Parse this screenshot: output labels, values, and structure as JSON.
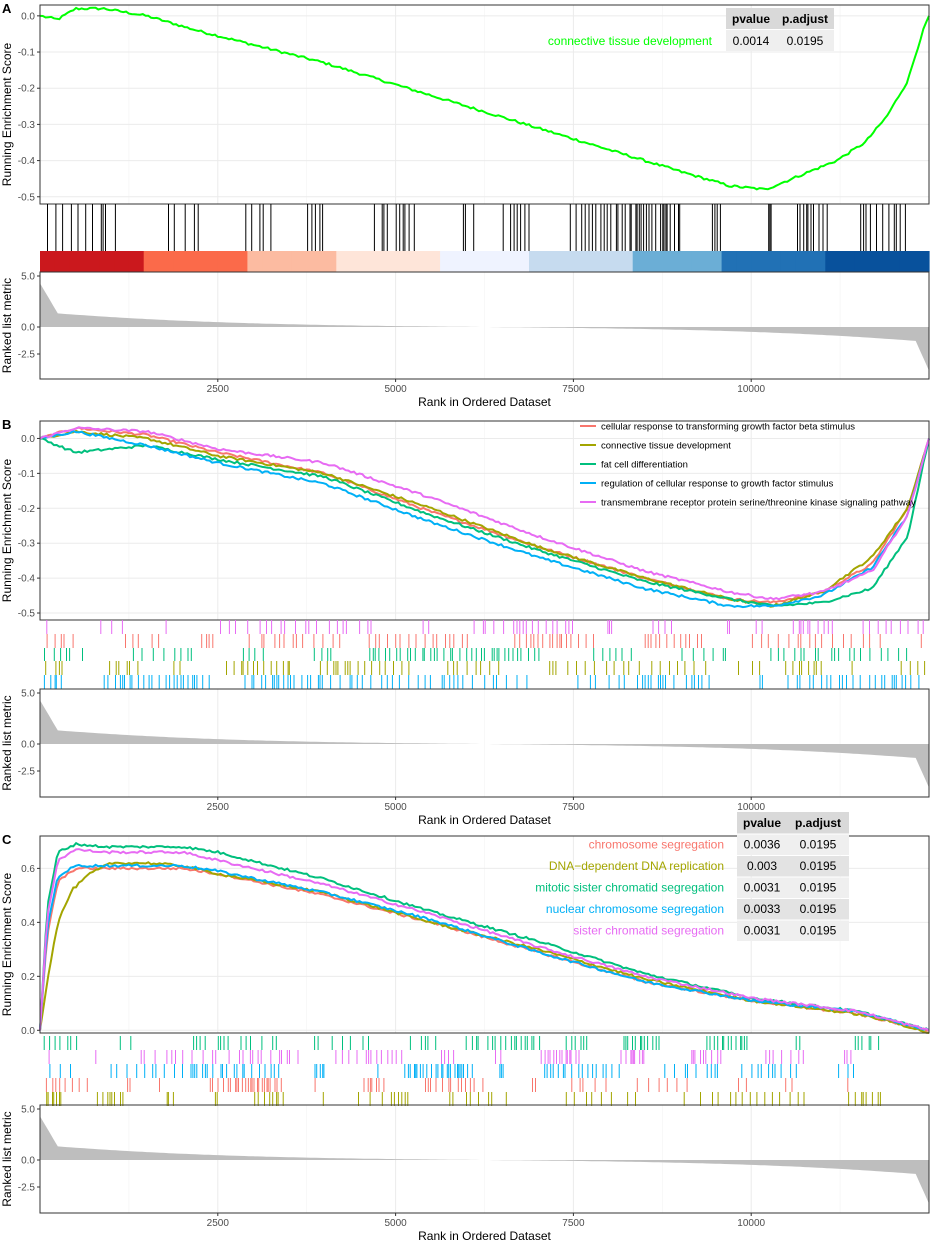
{
  "figure": {
    "x_axis_title": "Rank in Ordered Dataset",
    "y_axis_title_es": "Running Enrichment Score",
    "y_axis_title_metric": "Ranked list metric",
    "x_ticks": [
      "2500",
      "5000",
      "7500",
      "10000"
    ],
    "metric_ticks": [
      "5.0",
      "0.0",
      "-2.5"
    ],
    "metric_color": "#bebebe"
  },
  "chart_data": [
    {
      "panel_label": "A",
      "type": "line",
      "xlim": [
        0,
        12500
      ],
      "ylim": [
        -0.52,
        0.03
      ],
      "y_ticks": [
        "0.0",
        "-0.1",
        "-0.2",
        "-0.3",
        "-0.4",
        "-0.5"
      ],
      "series": [
        {
          "name": "connective tissue development",
          "color": "#00ff00",
          "x": [
            0,
            250,
            500,
            900,
            1500,
            2200,
            3000,
            4000,
            5000,
            6000,
            7000,
            8000,
            9000,
            9700,
            10200,
            10700,
            11200,
            11600,
            11900,
            12200,
            12400,
            12500
          ],
          "y": [
            0.0,
            -0.01,
            0.02,
            0.02,
            0.0,
            -0.04,
            -0.08,
            -0.13,
            -0.19,
            -0.25,
            -0.31,
            -0.37,
            -0.43,
            -0.47,
            -0.48,
            -0.44,
            -0.4,
            -0.35,
            -0.28,
            -0.18,
            -0.05,
            0.0
          ]
        }
      ],
      "table": {
        "headers": [
          "pvalue",
          "p.adjust"
        ],
        "rows": [
          [
            "0.0014",
            "0.0195"
          ]
        ]
      },
      "heat_colors": [
        "#cb181d",
        "#fb6a4a",
        "#fcbba1",
        "#fee5d9",
        "#eff3ff",
        "#c6dbef",
        "#6baed6",
        "#2171b5",
        "#08519c"
      ]
    },
    {
      "panel_label": "B",
      "type": "line",
      "xlim": [
        0,
        12500
      ],
      "ylim": [
        -0.52,
        0.05
      ],
      "y_ticks": [
        "0.0",
        "-0.1",
        "-0.2",
        "-0.3",
        "-0.4",
        "-0.5"
      ],
      "legend_position": "top-right",
      "series": [
        {
          "name": "cellular response to transforming growth factor beta stimulus",
          "color": "#f8766d",
          "x": [
            0,
            500,
            1500,
            2500,
            4000,
            5500,
            7000,
            8500,
            9700,
            10300,
            11000,
            11700,
            12200,
            12500
          ],
          "y": [
            0.0,
            0.03,
            0.01,
            -0.04,
            -0.1,
            -0.21,
            -0.31,
            -0.4,
            -0.46,
            -0.47,
            -0.44,
            -0.36,
            -0.2,
            0.0
          ]
        },
        {
          "name": "connective tissue development",
          "color": "#a3a500",
          "x": [
            0,
            500,
            1500,
            2500,
            4000,
            5500,
            7000,
            8500,
            9700,
            10300,
            11000,
            11700,
            12200,
            12500
          ],
          "y": [
            0.0,
            0.02,
            0.0,
            -0.05,
            -0.1,
            -0.2,
            -0.31,
            -0.4,
            -0.46,
            -0.48,
            -0.44,
            -0.34,
            -0.2,
            0.0
          ]
        },
        {
          "name": "fat cell differentiation",
          "color": "#00bf7d",
          "x": [
            0,
            500,
            1500,
            2500,
            4000,
            5500,
            7000,
            8500,
            9700,
            10300,
            11000,
            11700,
            12200,
            12500
          ],
          "y": [
            0.0,
            -0.04,
            -0.02,
            -0.06,
            -0.11,
            -0.22,
            -0.32,
            -0.41,
            -0.46,
            -0.48,
            -0.47,
            -0.43,
            -0.28,
            0.0
          ]
        },
        {
          "name": "regulation of cellular response to growth factor stimulus",
          "color": "#00b0f6",
          "x": [
            0,
            500,
            1500,
            2500,
            4000,
            5500,
            7000,
            8500,
            9700,
            10300,
            11000,
            11700,
            12200,
            12500
          ],
          "y": [
            0.0,
            0.02,
            -0.02,
            -0.07,
            -0.13,
            -0.24,
            -0.34,
            -0.43,
            -0.48,
            -0.48,
            -0.45,
            -0.37,
            -0.22,
            0.0
          ]
        },
        {
          "name": "transmembrane receptor protein serine/threonine kinase signaling pathway",
          "color": "#e76bf3",
          "x": [
            0,
            500,
            1500,
            2500,
            4000,
            5500,
            7000,
            8500,
            9700,
            10300,
            11000,
            11700,
            12200,
            12500
          ],
          "y": [
            0.0,
            0.03,
            0.02,
            -0.03,
            -0.07,
            -0.17,
            -0.28,
            -0.38,
            -0.44,
            -0.46,
            -0.44,
            -0.38,
            -0.22,
            0.0
          ]
        }
      ]
    },
    {
      "panel_label": "C",
      "type": "line",
      "xlim": [
        0,
        12500
      ],
      "ylim": [
        -0.01,
        0.72
      ],
      "y_ticks": [
        "0.6",
        "0.4",
        "0.2",
        "0.0"
      ],
      "series": [
        {
          "name": "chromosome segregation",
          "color": "#f8766d",
          "x": [
            0,
            100,
            250,
            500,
            900,
            1500,
            2000,
            2500,
            4000,
            5500,
            7000,
            8500,
            10000,
            11500,
            12500
          ],
          "y": [
            0.0,
            0.35,
            0.55,
            0.6,
            0.6,
            0.6,
            0.6,
            0.58,
            0.5,
            0.4,
            0.29,
            0.18,
            0.11,
            0.06,
            0.0
          ]
        },
        {
          "name": "DNA−dependent DNA replication",
          "color": "#a3a500",
          "x": [
            0,
            100,
            250,
            450,
            700,
            1000,
            1500,
            2000,
            2500,
            4000,
            5500,
            7000,
            8500,
            10000,
            11500,
            12000,
            12500
          ],
          "y": [
            0.0,
            0.18,
            0.4,
            0.52,
            0.58,
            0.62,
            0.62,
            0.61,
            0.58,
            0.51,
            0.4,
            0.3,
            0.19,
            0.11,
            0.06,
            0.03,
            -0.01
          ]
        },
        {
          "name": "mitotic sister chromatid segregation",
          "color": "#00bf7d",
          "x": [
            0,
            100,
            250,
            500,
            900,
            1500,
            2000,
            2500,
            4000,
            5500,
            7000,
            8500,
            10000,
            11500,
            12500
          ],
          "y": [
            0.0,
            0.45,
            0.66,
            0.69,
            0.68,
            0.68,
            0.68,
            0.66,
            0.56,
            0.44,
            0.33,
            0.21,
            0.12,
            0.07,
            0.0
          ]
        },
        {
          "name": "nuclear chromosome segregation",
          "color": "#00b0f6",
          "x": [
            0,
            100,
            250,
            500,
            900,
            1500,
            2000,
            2500,
            4000,
            5500,
            7000,
            8500,
            10000,
            11500,
            12500
          ],
          "y": [
            0.0,
            0.38,
            0.57,
            0.61,
            0.61,
            0.61,
            0.61,
            0.59,
            0.51,
            0.41,
            0.29,
            0.18,
            0.11,
            0.07,
            0.0
          ]
        },
        {
          "name": "sister chromatid segregation",
          "color": "#e76bf3",
          "x": [
            0,
            100,
            250,
            500,
            900,
            1500,
            2000,
            2500,
            4000,
            5500,
            7000,
            8500,
            10000,
            11500,
            12500
          ],
          "y": [
            0.0,
            0.42,
            0.63,
            0.67,
            0.66,
            0.66,
            0.66,
            0.63,
            0.54,
            0.43,
            0.31,
            0.2,
            0.12,
            0.07,
            0.0
          ]
        }
      ],
      "table": {
        "headers": [
          "pvalue",
          "p.adjust"
        ],
        "rows": [
          [
            "0.0036",
            "0.0195"
          ],
          [
            "0.003",
            "0.0195"
          ],
          [
            "0.0031",
            "0.0195"
          ],
          [
            "0.0033",
            "0.0195"
          ],
          [
            "0.0031",
            "0.0195"
          ]
        ]
      }
    }
  ]
}
